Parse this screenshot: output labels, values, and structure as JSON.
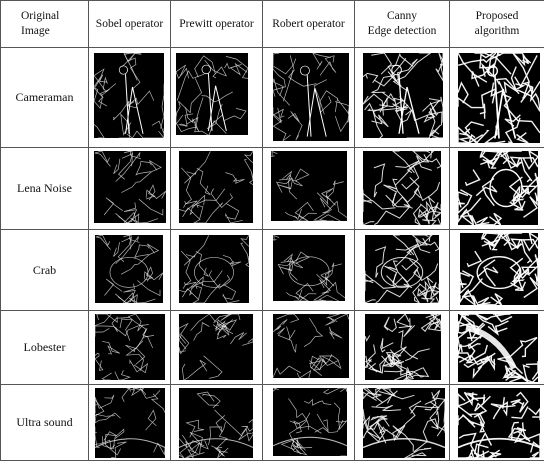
{
  "header": {
    "col0": [
      "Original",
      "Image"
    ],
    "col1": "Sobel operator",
    "col2": "Prewitt operator",
    "col3": "Robert operator",
    "col4": [
      "Canny",
      "Edge detection"
    ],
    "col5": [
      "Proposed",
      "algorithm"
    ]
  },
  "rows": [
    {
      "label": "Cameraman",
      "subject": "cameraman"
    },
    {
      "label": "Lena Noise",
      "subject": "lena"
    },
    {
      "label": "Crab",
      "subject": "crab"
    },
    {
      "label": "Lobester",
      "subject": "lobster"
    },
    {
      "label": "Ultra sound",
      "subject": "ultrasound"
    }
  ],
  "methods": [
    "sobel",
    "prewitt",
    "robert",
    "canny",
    "proposed"
  ],
  "colors": {
    "background": "#000000",
    "edge": "#ffffff",
    "border": "#555555"
  }
}
